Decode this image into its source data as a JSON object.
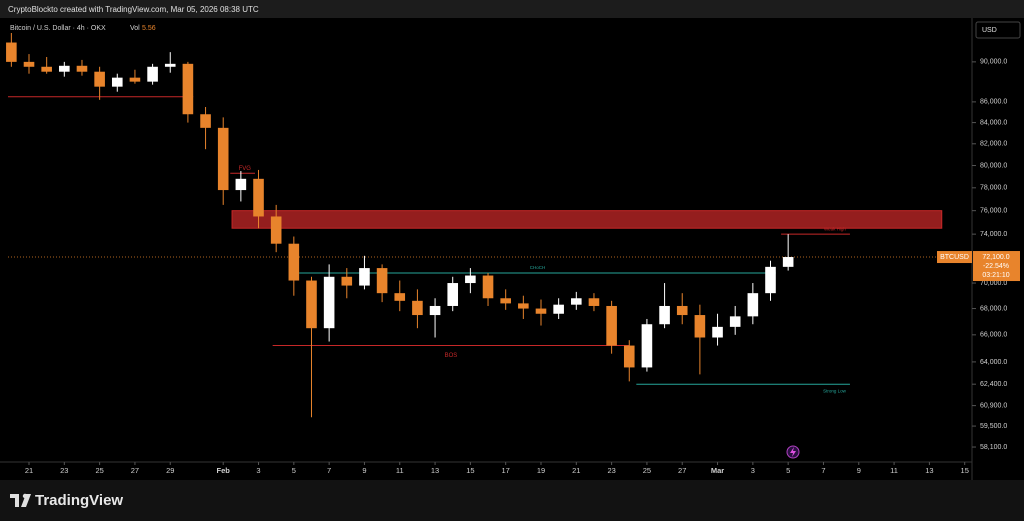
{
  "header": {
    "credit": "CryptoBlockto created with TradingView.com, Mar 05, 2026 08:38 UTC"
  },
  "footer": {
    "brand": "TradingView"
  },
  "chart_data": {
    "type": "candlestick",
    "title": "Bitcoin / U.S. Dollar · 4h · OKX",
    "volume_label": "Vol",
    "volume": "5.56",
    "currency": "USD",
    "symbol": "BTCUSD",
    "last_price": {
      "value": 72100,
      "label": "72,100.0"
    },
    "change": "-22.54%",
    "countdown": "03:21:10",
    "log_scale": true,
    "up_color": "#ffffff",
    "down_color": "#e8842c",
    "x": [
      -1,
      0,
      1,
      2,
      3,
      4,
      5,
      6,
      7,
      8,
      9,
      10,
      11,
      12,
      13,
      14,
      15,
      16,
      17,
      18,
      19,
      20,
      21,
      22,
      23,
      24,
      25,
      26,
      27,
      28,
      29,
      30,
      31,
      32,
      33,
      34,
      35,
      36,
      37,
      38,
      39,
      40,
      41,
      42,
      43
    ],
    "open": [
      92000,
      90000,
      89500,
      89000,
      89600,
      89000,
      87500,
      88400,
      88000,
      89500,
      89800,
      84800,
      83500,
      77800,
      78800,
      75500,
      73200,
      70200,
      66500,
      70500,
      69800,
      71200,
      69200,
      68600,
      67500,
      68200,
      70000,
      70600,
      68800,
      68400,
      68000,
      67600,
      68300,
      68800,
      68200,
      65200,
      63600,
      66800,
      68200,
      67500,
      65800,
      66600,
      67400,
      69200,
      71300
    ],
    "high": [
      93000,
      90800,
      90500,
      90000,
      90200,
      89500,
      88800,
      89200,
      89800,
      91000,
      90000,
      85500,
      84500,
      79500,
      79600,
      76500,
      73800,
      70500,
      71500,
      71200,
      72200,
      71500,
      70200,
      69500,
      68800,
      70500,
      71200,
      70800,
      69500,
      69000,
      68700,
      68800,
      69300,
      69200,
      68600,
      65600,
      67200,
      70000,
      69200,
      68300,
      67600,
      68200,
      70000,
      71800,
      74000
    ],
    "low": [
      89500,
      88800,
      88800,
      88500,
      88600,
      86200,
      87000,
      87800,
      87700,
      88900,
      84000,
      81500,
      76500,
      76800,
      74500,
      72500,
      69000,
      60100,
      65500,
      68800,
      69500,
      68500,
      67800,
      66500,
      65800,
      67800,
      69200,
      68200,
      67900,
      67200,
      66700,
      67200,
      67900,
      67800,
      64600,
      62600,
      63300,
      66500,
      66800,
      63100,
      65200,
      66000,
      66800,
      68600,
      71000
    ],
    "close": [
      90000,
      89500,
      89000,
      89600,
      89000,
      87500,
      88400,
      88000,
      89500,
      89800,
      84800,
      83500,
      77800,
      78800,
      75500,
      73200,
      70200,
      66500,
      70500,
      69800,
      71200,
      69200,
      68600,
      67500,
      68200,
      70000,
      70600,
      68800,
      68400,
      68000,
      67600,
      68300,
      68800,
      68200,
      65200,
      63600,
      66800,
      68200,
      67500,
      65800,
      66600,
      67400,
      69200,
      71300,
      72100
    ],
    "zone": {
      "top": 76000,
      "bottom": 74500,
      "x": [
        11.5,
        51.7
      ],
      "color": "#c62828"
    },
    "levels": [
      {
        "price": 86500,
        "x": [
          -1.19,
          9.3
        ],
        "color": "#c62828"
      },
      {
        "price": 65200,
        "x": [
          13.8,
          34
        ],
        "color": "#c62828",
        "label": "BOS"
      },
      {
        "price": 70800,
        "x": [
          15.3,
          42.3
        ],
        "color": "#26a69a",
        "label": "CHoCH"
      },
      {
        "price": 62400,
        "x": [
          34.4,
          46.5
        ],
        "color": "#26a69a",
        "label": "Strong Low"
      },
      {
        "price": 74000,
        "x": [
          42.6,
          46.5
        ],
        "color": "#c62828",
        "label": "Weak High"
      },
      {
        "price": 79300,
        "x": [
          11.4,
          12.8
        ],
        "color": "#c62828",
        "label": "FVG"
      }
    ],
    "xlim": [
      -1.19,
      53.3
    ],
    "ylim": [
      57250,
      94600
    ],
    "xticks": [
      {
        "value": 0,
        "label": "21"
      },
      {
        "value": 2,
        "label": "23"
      },
      {
        "value": 4,
        "label": "25"
      },
      {
        "value": 6,
        "label": "27"
      },
      {
        "value": 8,
        "label": "29"
      },
      {
        "value": 11,
        "label": "Feb"
      },
      {
        "value": 13,
        "label": "3"
      },
      {
        "value": 15,
        "label": "5"
      },
      {
        "value": 17,
        "label": "7"
      },
      {
        "value": 19,
        "label": "9"
      },
      {
        "value": 21,
        "label": "11"
      },
      {
        "value": 23,
        "label": "13"
      },
      {
        "value": 25,
        "label": "15"
      },
      {
        "value": 27,
        "label": "17"
      },
      {
        "value": 29,
        "label": "19"
      },
      {
        "value": 31,
        "label": "21"
      },
      {
        "value": 33,
        "label": "23"
      },
      {
        "value": 35,
        "label": "25"
      },
      {
        "value": 37,
        "label": "27"
      },
      {
        "value": 39,
        "label": "Mar"
      },
      {
        "value": 41,
        "label": "3"
      },
      {
        "value": 43,
        "label": "5"
      },
      {
        "value": 45,
        "label": "7"
      },
      {
        "value": 47,
        "label": "9"
      },
      {
        "value": 49,
        "label": "11"
      },
      {
        "value": 51,
        "label": "13"
      },
      {
        "value": 53,
        "label": "15"
      }
    ],
    "yticks": [
      {
        "value": 90000,
        "label": "90,000.0"
      },
      {
        "value": 86000,
        "label": "86,000.0"
      },
      {
        "value": 84000,
        "label": "84,000.0"
      },
      {
        "value": 82000,
        "label": "82,000.0"
      },
      {
        "value": 80000,
        "label": "80,000.0"
      },
      {
        "value": 78000,
        "label": "78,000.0"
      },
      {
        "value": 76000,
        "label": "76,000.0"
      },
      {
        "value": 74000,
        "label": "74,000.0"
      },
      {
        "value": 70000,
        "label": "70,000.0"
      },
      {
        "value": 68000,
        "label": "68,000.0"
      },
      {
        "value": 66000,
        "label": "66,000.0"
      },
      {
        "value": 64000,
        "label": "64,000.0"
      },
      {
        "value": 62400,
        "label": "62,400.0"
      },
      {
        "value": 60900,
        "label": "60,900.0"
      },
      {
        "value": 59500,
        "label": "59,500.0"
      },
      {
        "value": 58100,
        "label": "58,100.0"
      }
    ]
  }
}
